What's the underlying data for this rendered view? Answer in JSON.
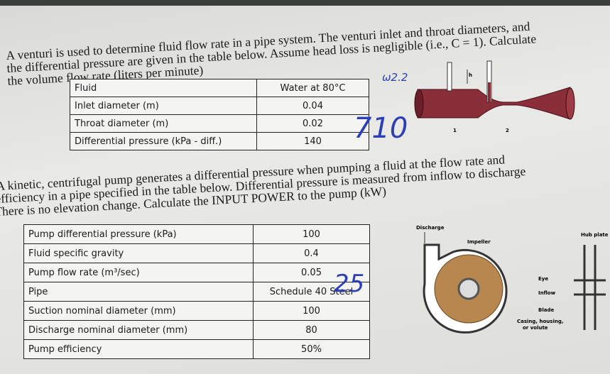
{
  "problem1": {
    "lines": [
      "A venturi is used to determine fluid flow rate in a pipe system. The venturi inlet and throat diameters, and",
      "the differential pressure are given in the table below. Assume head loss is negligible (i.e., C = 1). Calculate",
      "the volume flow rate (liters per minute)"
    ],
    "table": {
      "rows": [
        [
          "Fluid",
          "Water at 80°C"
        ],
        [
          "Inlet diameter (m)",
          "0.04"
        ],
        [
          "Throat diameter (m)",
          "0.02"
        ],
        [
          "Differential pressure (kPa - diff.)",
          "140"
        ]
      ]
    },
    "annotations": [
      "ω2.2",
      "710"
    ],
    "diagram": {
      "labels": [
        "h",
        "1",
        "2"
      ]
    }
  },
  "problem2": {
    "lines": [
      "A kinetic, centrifugal pump generates a differential pressure when pumping a fluid at the flow rate and",
      "efficiency in a pipe specified in the table below. Differential pressure is measured from inflow to discharge",
      "There is no elevation change. Calculate the INPUT POWER to the pump (kW)"
    ],
    "table": {
      "rows": [
        [
          "Pump differential pressure (kPa)",
          "100"
        ],
        [
          "Fluid specific gravity",
          "0.4"
        ],
        [
          "Pump flow rate (m³/sec)",
          "0.05"
        ],
        [
          "Pipe",
          "Schedule 40 Steel"
        ],
        [
          "Suction nominal diameter (mm)",
          "100"
        ],
        [
          "Discharge nominal diameter (mm)",
          "80"
        ],
        [
          "Pump efficiency",
          "50%"
        ]
      ]
    },
    "annotations": [
      "25"
    ],
    "diagram": {
      "labels": [
        "Discharge",
        "Impeller",
        "Hub plate",
        "Eye",
        "Inflow",
        "Blade",
        "Casing, housing,",
        "or volute"
      ]
    }
  }
}
